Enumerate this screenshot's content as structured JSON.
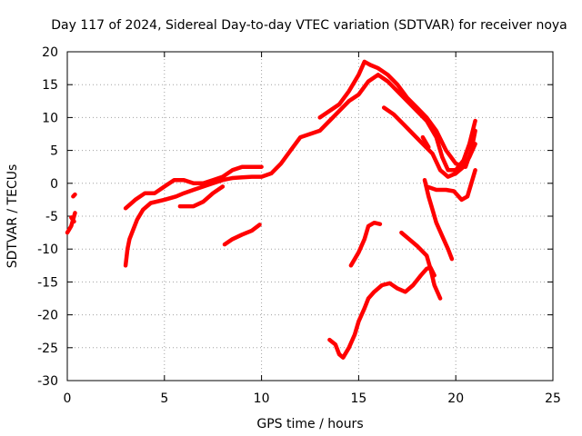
{
  "chart_data": {
    "type": "line",
    "title": "Day 117 of 2024, Sidereal Day-to-day VTEC variation (SDTVAR) for receiver noya",
    "xlabel": "GPS time / hours",
    "ylabel": "SDTVAR / TECUs",
    "xlim": [
      0,
      25
    ],
    "ylim": [
      -30,
      20
    ],
    "xticks": [
      0,
      5,
      10,
      15,
      20,
      25
    ],
    "yticks": [
      -30,
      -25,
      -20,
      -15,
      -10,
      -5,
      0,
      5,
      10,
      15,
      20
    ],
    "grid": true,
    "color": "#ff0000",
    "series": [
      {
        "name": "track-1",
        "points": [
          [
            0.0,
            -7.5
          ],
          [
            0.2,
            -6.5
          ],
          [
            0.3,
            -5.5
          ],
          [
            0.4,
            -4.5
          ]
        ]
      },
      {
        "name": "track-2",
        "points": [
          [
            0.2,
            -5.2
          ],
          [
            0.35,
            -5.8
          ]
        ]
      },
      {
        "name": "track-3",
        "points": [
          [
            0.3,
            -2.0
          ],
          [
            0.4,
            -1.7
          ]
        ]
      },
      {
        "name": "track-4",
        "points": [
          [
            3.0,
            -12.5
          ],
          [
            3.1,
            -10.0
          ],
          [
            3.2,
            -8.5
          ],
          [
            3.4,
            -7.0
          ],
          [
            3.6,
            -5.5
          ],
          [
            3.9,
            -4.0
          ],
          [
            4.3,
            -3.0
          ],
          [
            5.0,
            -2.5
          ],
          [
            5.6,
            -2.0
          ],
          [
            6.0,
            -1.5
          ],
          [
            6.5,
            -1.0
          ],
          [
            7.0,
            -0.5
          ],
          [
            7.5,
            0.0
          ],
          [
            8.0,
            0.5
          ],
          [
            8.5,
            0.8
          ],
          [
            9.0,
            0.9
          ],
          [
            9.5,
            1.0
          ],
          [
            10.0,
            1.0
          ],
          [
            10.5,
            1.5
          ],
          [
            11.0,
            3.0
          ],
          [
            11.5,
            5.0
          ],
          [
            12.0,
            7.0
          ],
          [
            12.5,
            7.5
          ],
          [
            13.0,
            8.0
          ],
          [
            13.5,
            9.5
          ],
          [
            14.0,
            11.0
          ],
          [
            14.5,
            12.5
          ],
          [
            15.0,
            13.5
          ],
          [
            15.5,
            15.5
          ],
          [
            16.0,
            16.5
          ],
          [
            16.5,
            15.5
          ],
          [
            17.0,
            14.0
          ],
          [
            17.5,
            12.5
          ],
          [
            18.0,
            11.0
          ],
          [
            18.5,
            9.5
          ],
          [
            19.0,
            7.0
          ],
          [
            19.3,
            4.0
          ],
          [
            19.6,
            2.0
          ],
          [
            20.0,
            2.0
          ],
          [
            20.4,
            3.5
          ],
          [
            20.7,
            6.0
          ],
          [
            21.0,
            9.5
          ]
        ]
      },
      {
        "name": "track-5",
        "points": [
          [
            3.0,
            -3.8
          ],
          [
            3.5,
            -2.5
          ],
          [
            4.0,
            -1.5
          ],
          [
            4.5,
            -1.5
          ],
          [
            5.0,
            -0.5
          ],
          [
            5.5,
            0.5
          ],
          [
            6.0,
            0.5
          ],
          [
            6.5,
            0.0
          ],
          [
            7.0,
            0.0
          ],
          [
            7.5,
            0.5
          ],
          [
            8.0,
            1.0
          ],
          [
            8.5,
            2.0
          ],
          [
            9.0,
            2.5
          ],
          [
            9.5,
            2.5
          ],
          [
            10.0,
            2.5
          ]
        ]
      },
      {
        "name": "track-6",
        "points": [
          [
            5.8,
            -3.5
          ],
          [
            6.5,
            -3.5
          ],
          [
            7.0,
            -2.8
          ],
          [
            7.5,
            -1.5
          ],
          [
            8.0,
            -0.5
          ]
        ]
      },
      {
        "name": "track-7",
        "points": [
          [
            13.0,
            10.0
          ],
          [
            14.0,
            12.0
          ],
          [
            14.5,
            14.0
          ],
          [
            15.0,
            16.5
          ],
          [
            15.3,
            18.5
          ],
          [
            15.6,
            18.0
          ],
          [
            16.0,
            17.5
          ],
          [
            16.5,
            16.5
          ],
          [
            17.0,
            15.0
          ],
          [
            17.5,
            13.0
          ],
          [
            18.0,
            11.5
          ],
          [
            18.5,
            10.0
          ],
          [
            19.0,
            8.0
          ],
          [
            19.5,
            5.0
          ],
          [
            20.0,
            3.0
          ],
          [
            20.5,
            2.5
          ],
          [
            20.8,
            5.0
          ],
          [
            21.0,
            8.0
          ]
        ]
      },
      {
        "name": "track-8",
        "points": [
          [
            16.3,
            11.5
          ],
          [
            16.8,
            10.5
          ],
          [
            17.3,
            9.0
          ],
          [
            17.8,
            7.5
          ],
          [
            18.3,
            6.0
          ],
          [
            18.8,
            4.5
          ],
          [
            19.2,
            2.0
          ],
          [
            19.6,
            1.0
          ],
          [
            20.0,
            1.5
          ],
          [
            20.4,
            2.5
          ],
          [
            20.7,
            4.0
          ],
          [
            21.0,
            6.0
          ]
        ]
      },
      {
        "name": "track-9",
        "points": [
          [
            18.3,
            7.0
          ],
          [
            18.6,
            5.5
          ]
        ]
      },
      {
        "name": "track-10",
        "points": [
          [
            18.5,
            -0.5
          ],
          [
            19.0,
            -1.0
          ],
          [
            19.5,
            -1.0
          ],
          [
            19.9,
            -1.2
          ],
          [
            20.3,
            -2.5
          ],
          [
            20.6,
            -2.0
          ],
          [
            20.8,
            0.0
          ],
          [
            21.0,
            2.0
          ]
        ]
      },
      {
        "name": "track-11",
        "points": [
          [
            18.4,
            0.5
          ],
          [
            18.6,
            -2.0
          ],
          [
            18.8,
            -4.0
          ],
          [
            19.0,
            -6.0
          ],
          [
            19.3,
            -8.0
          ],
          [
            19.6,
            -10.0
          ],
          [
            19.8,
            -11.5
          ]
        ]
      },
      {
        "name": "track-12",
        "points": [
          [
            8.1,
            -9.3
          ],
          [
            8.5,
            -8.5
          ],
          [
            9.0,
            -7.8
          ],
          [
            9.5,
            -7.2
          ],
          [
            9.9,
            -6.3
          ]
        ]
      },
      {
        "name": "track-13",
        "points": [
          [
            14.6,
            -12.5
          ],
          [
            15.0,
            -10.5
          ],
          [
            15.3,
            -8.5
          ],
          [
            15.5,
            -6.5
          ],
          [
            15.8,
            -6.0
          ],
          [
            16.1,
            -6.2
          ]
        ]
      },
      {
        "name": "track-14",
        "points": [
          [
            17.2,
            -7.5
          ],
          [
            17.6,
            -8.5
          ],
          [
            18.0,
            -9.5
          ],
          [
            18.5,
            -11.0
          ],
          [
            18.7,
            -13.0
          ],
          [
            18.9,
            -15.5
          ],
          [
            19.2,
            -17.5
          ]
        ]
      },
      {
        "name": "track-15",
        "points": [
          [
            13.5,
            -23.8
          ],
          [
            13.8,
            -24.5
          ],
          [
            14.0,
            -26.0
          ],
          [
            14.2,
            -26.5
          ],
          [
            14.5,
            -25.0
          ],
          [
            14.8,
            -23.0
          ],
          [
            15.0,
            -21.0
          ],
          [
            15.3,
            -19.0
          ],
          [
            15.5,
            -17.5
          ],
          [
            15.8,
            -16.5
          ],
          [
            16.2,
            -15.5
          ],
          [
            16.6,
            -15.2
          ],
          [
            17.0,
            -16.0
          ],
          [
            17.4,
            -16.5
          ],
          [
            17.8,
            -15.5
          ],
          [
            18.2,
            -14.0
          ],
          [
            18.5,
            -13.0
          ],
          [
            18.7,
            -12.8
          ],
          [
            18.9,
            -14.0
          ]
        ]
      }
    ]
  }
}
